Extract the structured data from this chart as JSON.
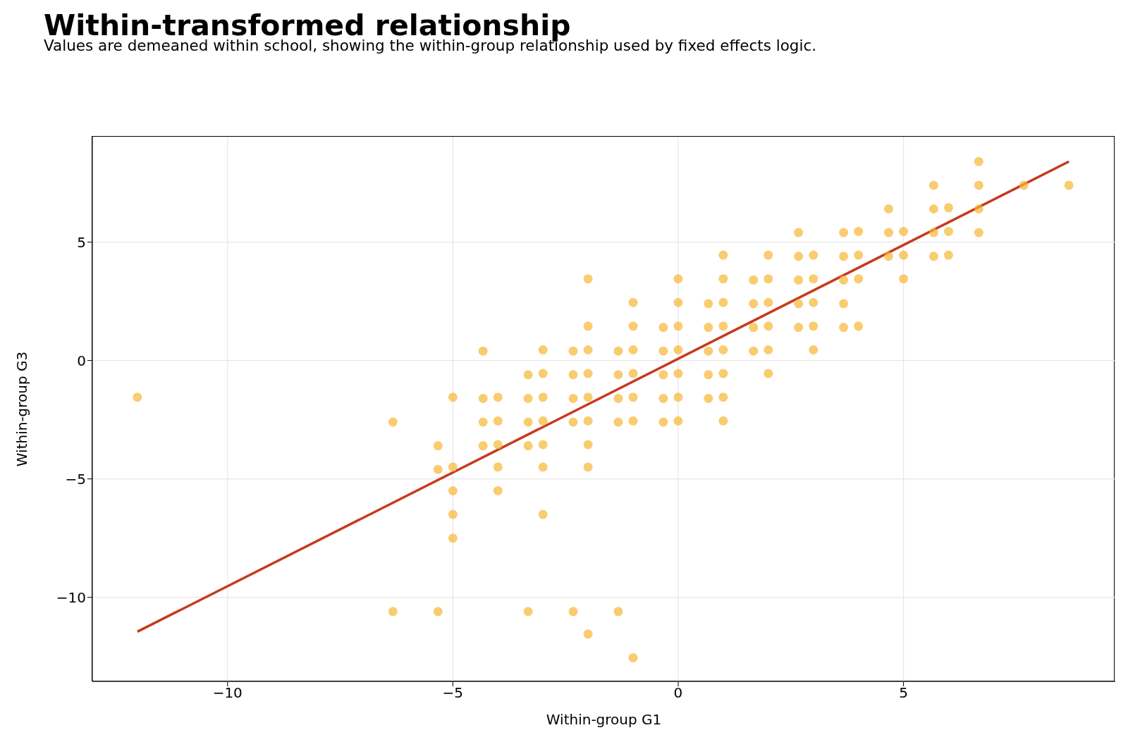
{
  "chart_data": {
    "type": "scatter",
    "title": "Within-transformed relationship",
    "subtitle": "Values are demeaned within school, showing the within-group relationship used by fixed effects logic.",
    "xlabel": "Within-group G1",
    "ylabel": "Within-group G3",
    "xlim": [
      -13,
      9.7
    ],
    "ylim": [
      -13.55,
      9.45
    ],
    "xticks": [
      -10,
      -5,
      0,
      5
    ],
    "yticks": [
      -10,
      -5,
      0,
      5
    ],
    "grid": true,
    "series": [
      {
        "marker": "circle",
        "color": "#f7b733",
        "x": [
          -12,
          -6.33,
          -6.33,
          -5.33,
          -5.33,
          -5.33,
          -5,
          -5,
          -5,
          -5,
          -5,
          -4.33,
          -4.33,
          -4.33,
          -4.33,
          -4,
          -4,
          -4,
          -4,
          -4,
          -3.33,
          -3.33,
          -3.33,
          -3.33,
          -3.33,
          -3,
          -3,
          -3,
          -3,
          -3,
          -3,
          -3,
          -2.33,
          -2.33,
          -2.33,
          -2.33,
          -2.33,
          -2,
          -2,
          -2,
          -2,
          -2,
          -2,
          -2,
          -2,
          -2,
          -1.33,
          -1.33,
          -1.33,
          -1.33,
          -1.33,
          -1,
          -1,
          -1,
          -1,
          -1,
          -1,
          -1,
          -0.33,
          -0.33,
          -0.33,
          -0.33,
          -0.33,
          0,
          0,
          0,
          0,
          0,
          0,
          0,
          0.67,
          0.67,
          0.67,
          0.67,
          0.67,
          1,
          1,
          1,
          1,
          1,
          1,
          1,
          1,
          1.67,
          1.67,
          1.67,
          1.67,
          2,
          2,
          2,
          2,
          2,
          2,
          2.67,
          2.67,
          2.67,
          2.67,
          2.67,
          3,
          3,
          3,
          3,
          3,
          3.67,
          3.67,
          3.67,
          3.67,
          3.67,
          4,
          4,
          4,
          4,
          4.67,
          4.67,
          4.67,
          5,
          5,
          5,
          5.67,
          5.67,
          5.67,
          5.67,
          6,
          6,
          6,
          6.67,
          6.67,
          6.67,
          6.67,
          7.67,
          8.67
        ],
        "values": [
          -1.55,
          -2.6,
          -10.6,
          -3.6,
          -4.6,
          -10.6,
          -1.55,
          -4.5,
          -5.5,
          -6.5,
          -7.5,
          0.4,
          -1.6,
          -2.6,
          -3.6,
          -1.55,
          -2.55,
          -3.55,
          -4.5,
          -5.5,
          -0.6,
          -1.6,
          -2.6,
          -3.6,
          -10.6,
          0.45,
          -0.55,
          -1.55,
          -2.55,
          -3.55,
          -4.5,
          -6.5,
          0.4,
          -0.6,
          -1.6,
          -2.6,
          -10.6,
          3.45,
          1.45,
          0.45,
          -0.55,
          -1.55,
          -2.55,
          -3.55,
          -4.5,
          -11.55,
          0.4,
          -0.6,
          -1.6,
          -2.6,
          -10.6,
          2.45,
          1.45,
          0.45,
          -0.55,
          -1.55,
          -2.55,
          -12.55,
          1.4,
          0.4,
          -0.6,
          -1.6,
          -2.6,
          3.45,
          2.45,
          1.45,
          0.45,
          -0.55,
          -1.55,
          -2.55,
          2.4,
          1.4,
          0.4,
          -0.6,
          -1.6,
          4.45,
          3.45,
          2.45,
          1.45,
          0.45,
          -0.55,
          -1.55,
          -2.55,
          3.4,
          2.4,
          1.4,
          0.4,
          4.45,
          3.45,
          2.45,
          1.45,
          0.45,
          -0.55,
          5.4,
          4.4,
          3.4,
          2.4,
          1.4,
          4.45,
          3.45,
          2.45,
          1.45,
          0.45,
          5.4,
          4.4,
          3.4,
          2.4,
          1.4,
          5.45,
          4.45,
          3.45,
          1.45,
          6.4,
          5.4,
          4.4,
          5.45,
          4.45,
          3.45,
          7.4,
          6.4,
          5.4,
          4.4,
          6.45,
          5.45,
          4.45,
          8.4,
          7.4,
          6.4,
          5.4,
          7.4,
          7.4
        ]
      },
      {
        "type": "line",
        "color": "#c63a1c",
        "x": [
          -12,
          8.67
        ],
        "values": [
          -11.45,
          8.4
        ]
      }
    ]
  }
}
